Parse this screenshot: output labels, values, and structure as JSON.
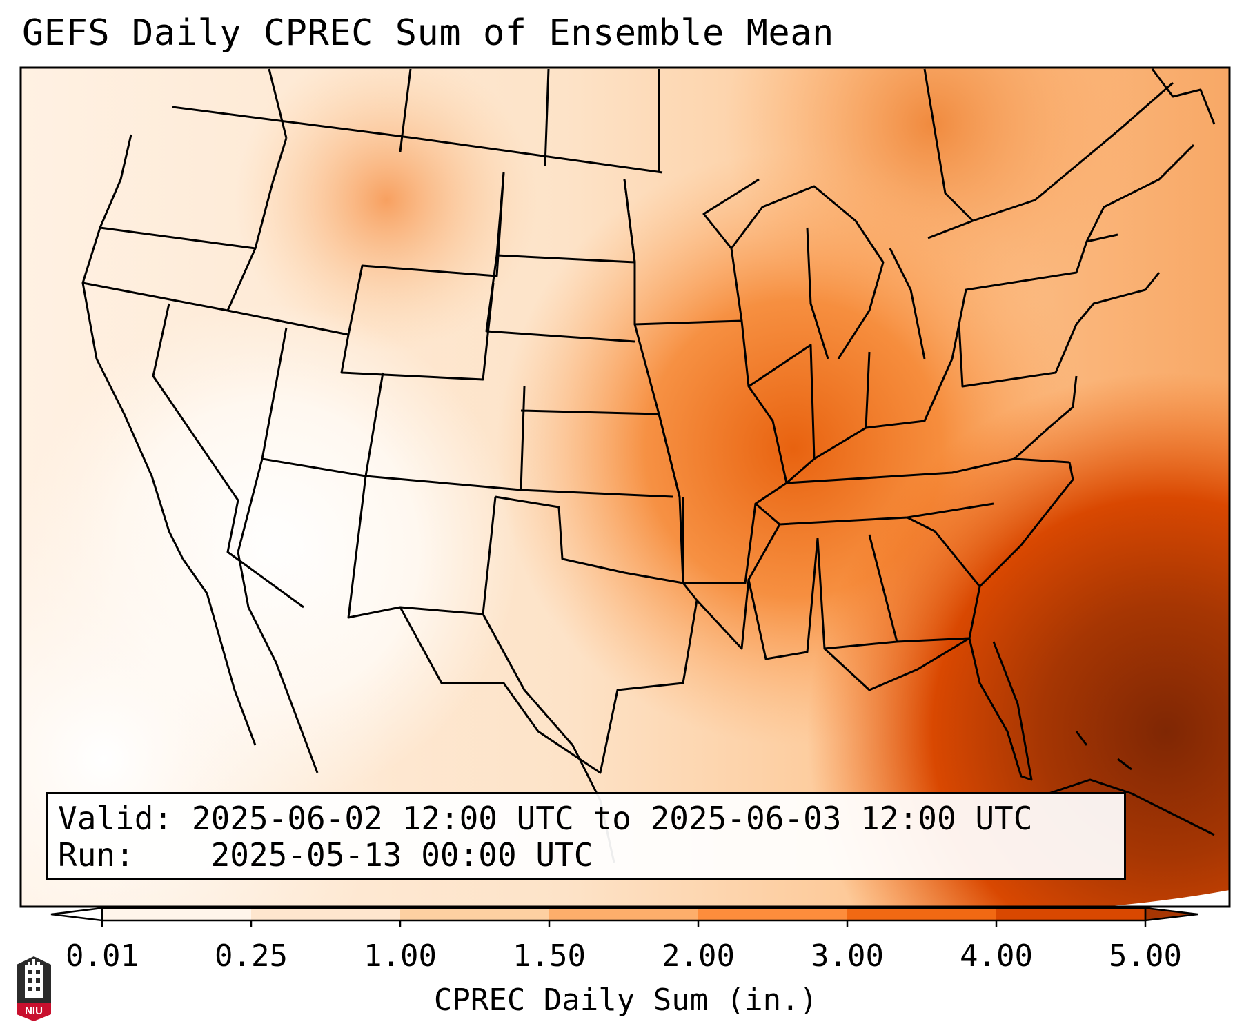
{
  "title": "GEFS Daily CPREC Sum of Ensemble Mean",
  "info": {
    "valid_label": "Valid:",
    "valid_value": "2025-06-02 12:00 UTC to 2025-06-03 12:00 UTC",
    "run_label": "Run:",
    "run_value": "2025-05-13 00:00 UTC"
  },
  "colorbar": {
    "title": "CPREC Daily Sum (in.)",
    "ticks": [
      "0.01",
      "0.25",
      "1.00",
      "1.50",
      "2.00",
      "3.00",
      "4.00",
      "5.00"
    ],
    "colors": [
      "#fff5eb",
      "#fee6ce",
      "#fdd0a2",
      "#fdae6b",
      "#fd8d3c",
      "#f16913",
      "#d94801",
      "#a63603",
      "#7f2704"
    ]
  },
  "logo": {
    "text": "NIU",
    "icon": "university-tower-icon"
  }
}
